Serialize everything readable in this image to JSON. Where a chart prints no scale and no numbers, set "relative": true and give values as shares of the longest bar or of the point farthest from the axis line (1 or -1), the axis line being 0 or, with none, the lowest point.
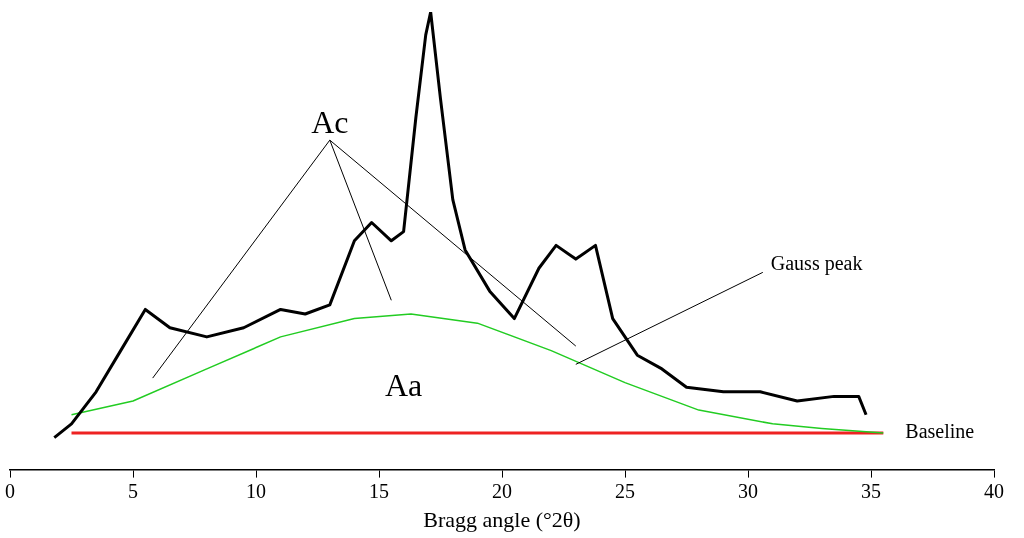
{
  "chart_data": {
    "type": "line",
    "relative": true,
    "xlabel": "Bragg angle (°2θ)",
    "xlim": [
      0,
      40
    ],
    "xticks": [
      0,
      5,
      10,
      15,
      20,
      25,
      30,
      35,
      40
    ],
    "tick_labels": "x",
    "grid": false,
    "legend": false,
    "marker": "none",
    "line_style": "solid",
    "series": [
      {
        "color": "#000000",
        "x": [
          1.8,
          2.5,
          3.5,
          4.5,
          5.5,
          6.5,
          8,
          9.5,
          11,
          12,
          13,
          14,
          14.7,
          15.5,
          16,
          16.5,
          16.9,
          17.1,
          17.5,
          18,
          18.5,
          19.5,
          20.5,
          21.5,
          22.2,
          23,
          23.8,
          24.5,
          25.5,
          26.5,
          27.5,
          29,
          30.5,
          32,
          33.5,
          34.5,
          34.8
        ],
        "values": [
          0.07,
          0.1,
          0.17,
          0.26,
          0.35,
          0.31,
          0.29,
          0.31,
          0.35,
          0.34,
          0.36,
          0.5,
          0.54,
          0.5,
          0.52,
          0.77,
          0.95,
          1,
          0.81,
          0.59,
          0.48,
          0.39,
          0.33,
          0.44,
          0.49,
          0.46,
          0.49,
          0.33,
          0.25,
          0.22,
          0.18,
          0.17,
          0.17,
          0.15,
          0.16,
          0.16,
          0.12
        ]
      },
      {
        "color": "#22cc22",
        "x": [
          2.5,
          5,
          8,
          11,
          14,
          16.3,
          19,
          22,
          25,
          28,
          31,
          33,
          35.5
        ],
        "values": [
          0.12,
          0.15,
          0.22,
          0.29,
          0.33,
          0.34,
          0.32,
          0.26,
          0.19,
          0.13,
          0.1,
          0.09,
          0.08
        ]
      },
      {
        "color": "#ee2222",
        "x": [
          2.5,
          35.5
        ],
        "values": [
          0.08,
          0.08
        ]
      }
    ],
    "annotations": [
      "Ac",
      "Aa",
      {
        "text": "Gauss peak",
        "x": 23,
        "y": 0.23
      },
      {
        "text": "Baseline",
        "x": 35.5,
        "y": 0.08
      }
    ]
  }
}
